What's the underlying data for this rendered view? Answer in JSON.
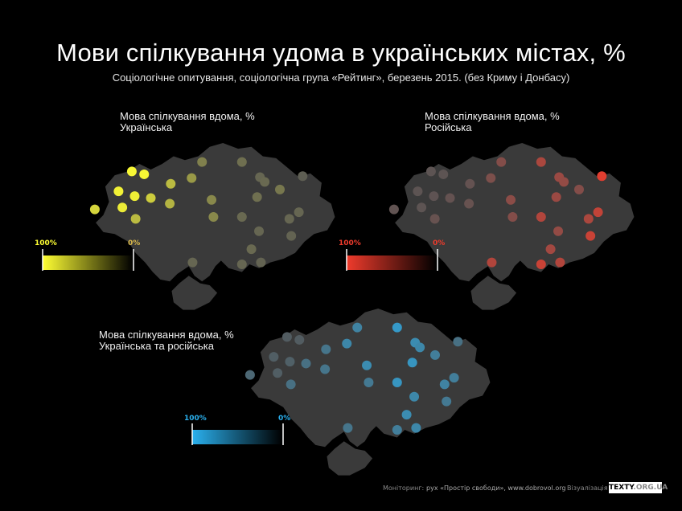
{
  "title": "Мови спілкування удома в українських містах, %",
  "subtitle": "Соціологічне опитування, соціологічна група «Рейтинг», березень 2015. (без Криму і Донбасу)",
  "maps": [
    {
      "id": "ukrainian",
      "label_line1": "Мова спілкування вдома, %",
      "label_line2": "Українська",
      "legend_max": "100%",
      "legend_min": "0%",
      "color": "#ffff33",
      "color_max_label": "#ffff33",
      "color_min_label": "#d9b84a"
    },
    {
      "id": "russian",
      "label_line1": "Мова спілкування вдома, %",
      "label_line2": "Російська",
      "legend_max": "100%",
      "legend_min": "0%",
      "color": "#ef3b2c",
      "color_max_label": "#ef3b2c",
      "color_min_label": "#ef3b2c"
    },
    {
      "id": "both",
      "label_line1": "Мова спілкування вдома, %",
      "label_line2": "Українська та російська",
      "legend_max": "100%",
      "legend_min": "0%",
      "color": "#2ab0ee",
      "color_max_label": "#2ab0ee",
      "color_min_label": "#2ab0ee"
    }
  ],
  "footer": {
    "monitoring_label": "Моніторинг:",
    "monitoring_text": "рух «Простір свободи», www.dobrovol.org",
    "viz_label": "Візуалізація —",
    "brand": "TEXTY",
    "brand_tld": ".ORG.UA"
  },
  "colors": {
    "background": "#000000",
    "country_fill": "#3a3a3a",
    "empty_dot": "#555555"
  }
}
